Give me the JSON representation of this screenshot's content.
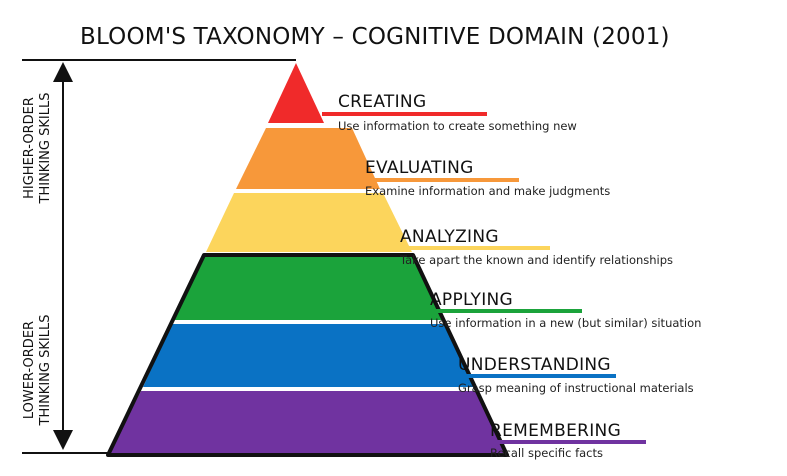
{
  "title": "BLOOM'S TAXONOMY – COGNITIVE DOMAIN (2001)",
  "side_labels": {
    "higher": [
      "HIGHER-ORDER",
      "THINKING SKILLS"
    ],
    "lower": [
      "LOWER-ORDER",
      "THINKING SKILLS"
    ]
  },
  "levels": [
    {
      "name": "CREATING",
      "description": "Use information to create something new",
      "color": "#F02A2A"
    },
    {
      "name": "EVALUATING",
      "description": "Examine information and make judgments",
      "color": "#F7983A"
    },
    {
      "name": "ANALYZING",
      "description": "Take apart the known and identify relationships",
      "color": "#FCD55C"
    },
    {
      "name": "APPLYING",
      "description": "Use information in a new (but similar) situation",
      "color": "#1BA33B"
    },
    {
      "name": "UNDERSTANDING",
      "description": "Grasp meaning of instructional materials",
      "color": "#0A72C4"
    },
    {
      "name": "REMEMBERING",
      "description": "Recall specific facts",
      "color": "#7033A0"
    }
  ]
}
